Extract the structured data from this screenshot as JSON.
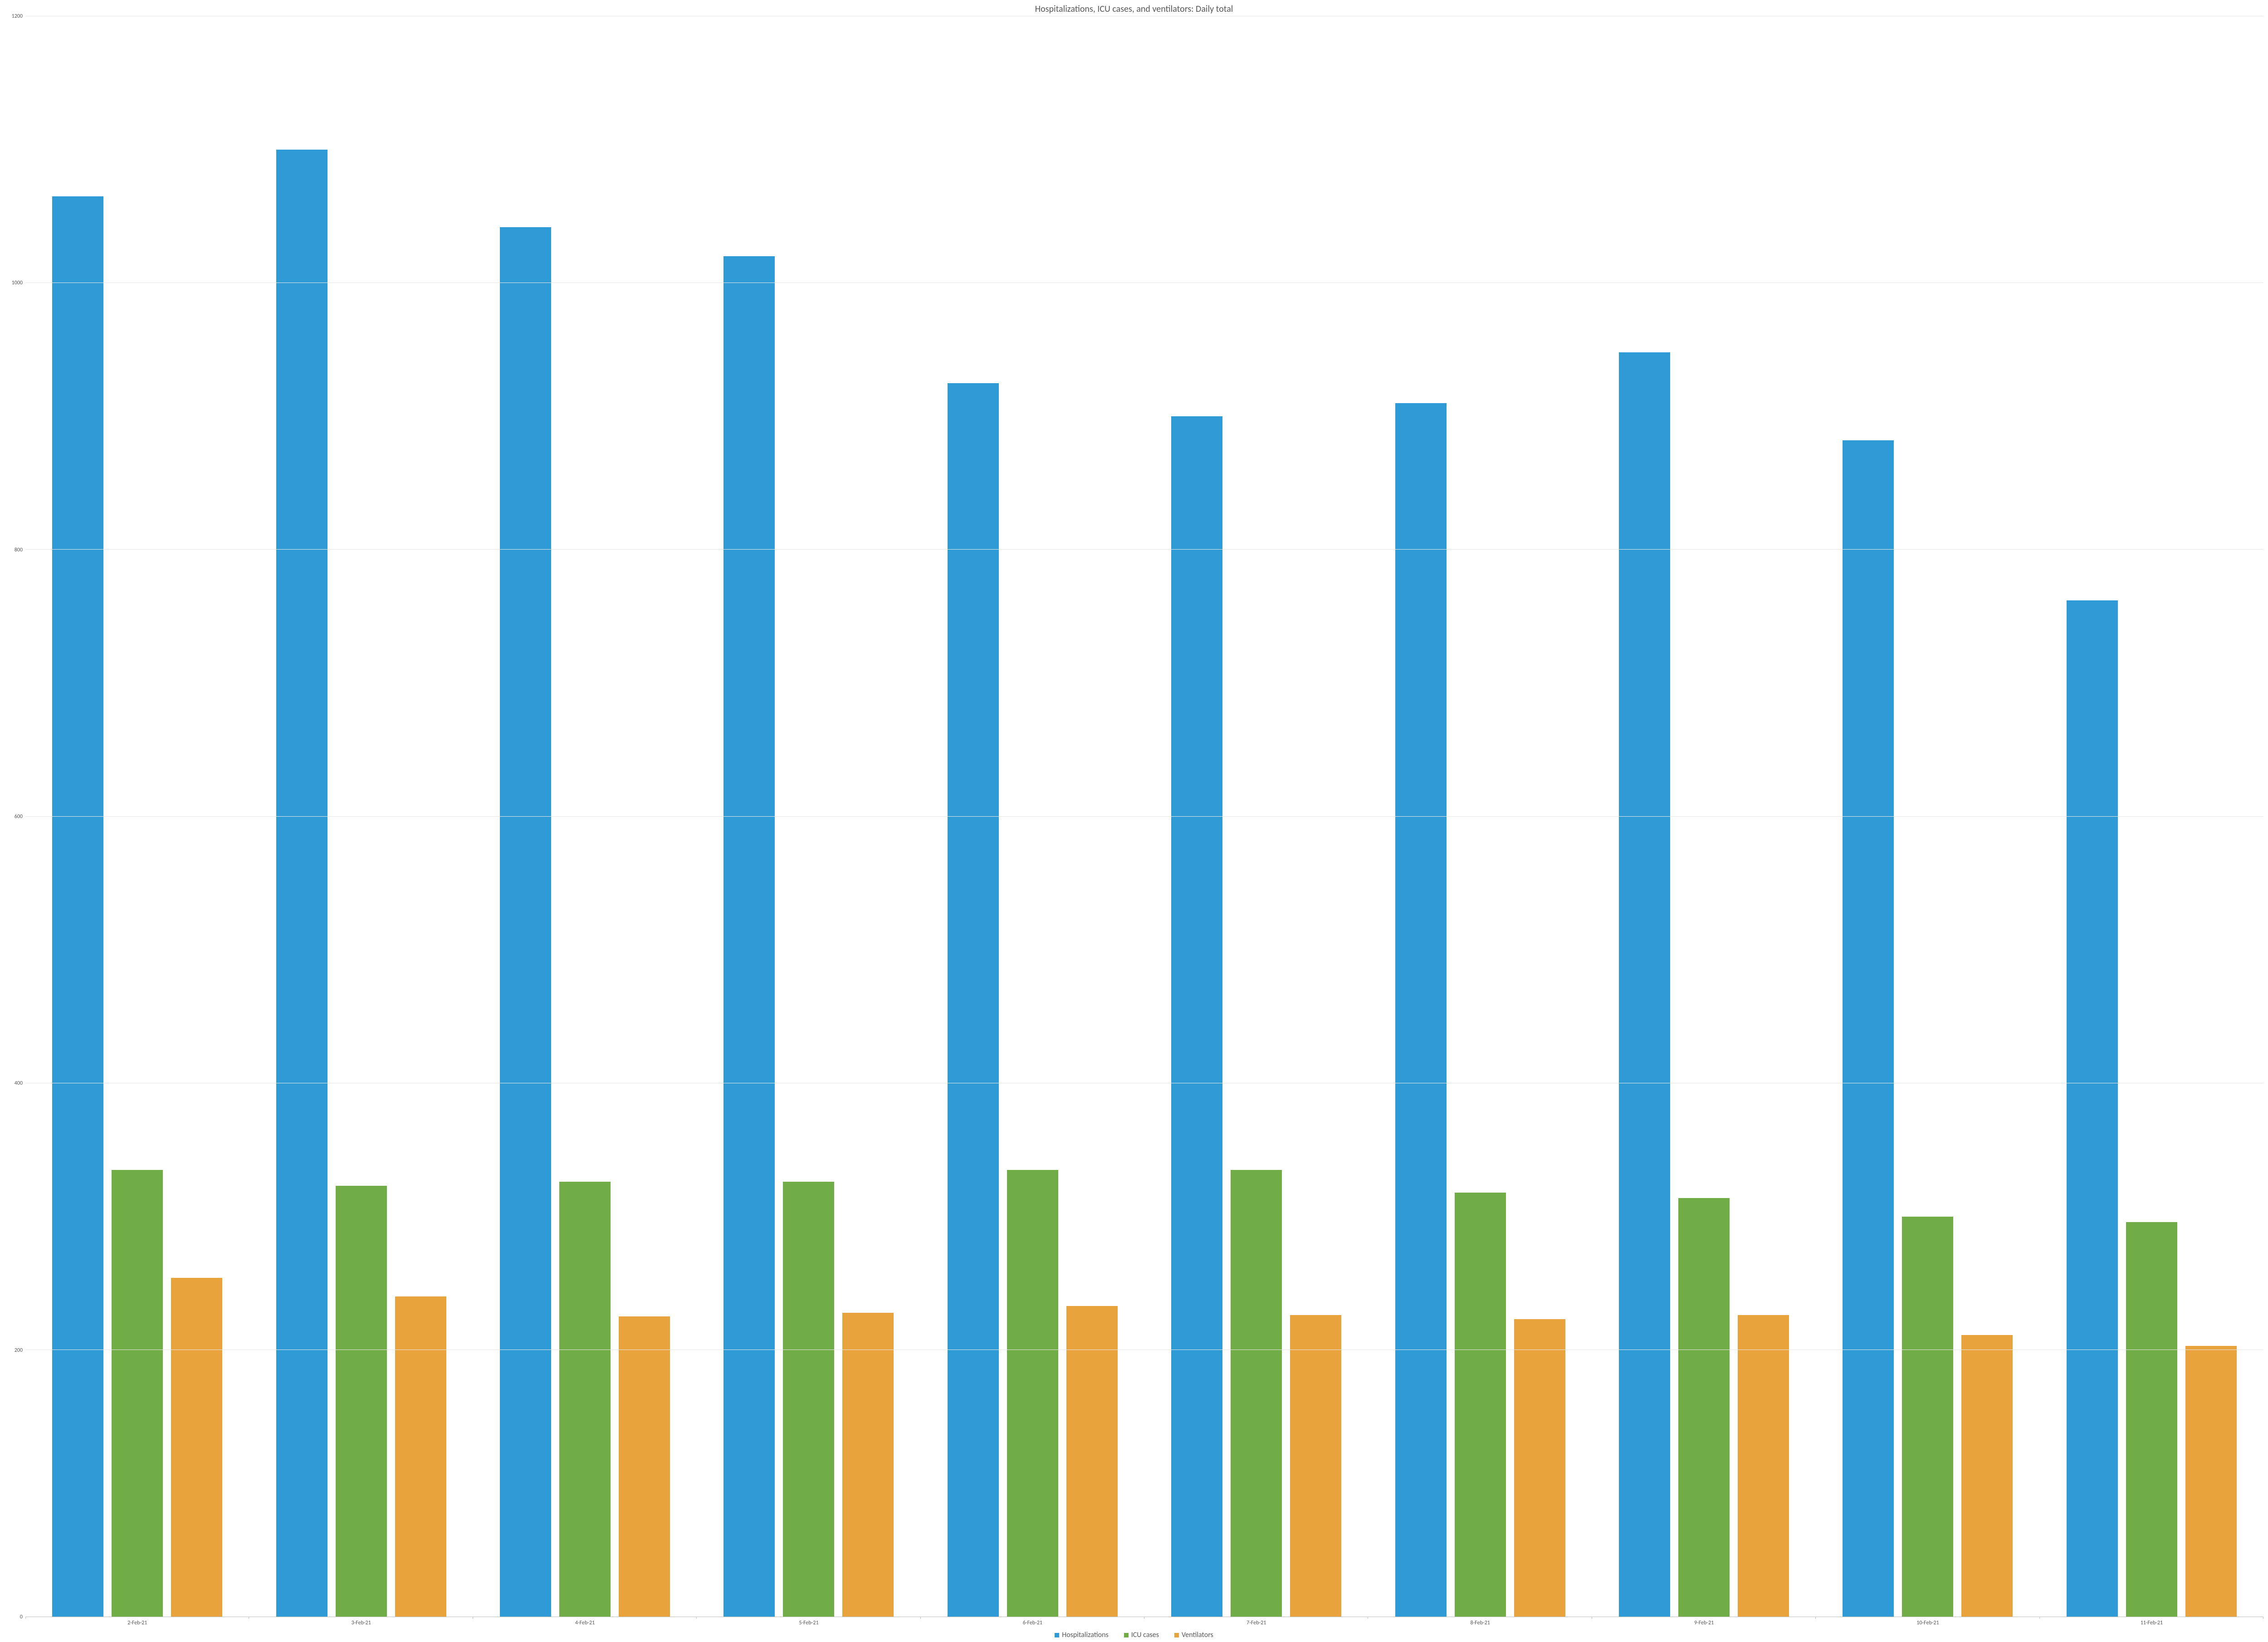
{
  "chart": {
    "type": "bar",
    "title": "Hospitalizations, ICU cases, and ventilators: Daily total",
    "title_fontsize": 20,
    "title_color": "#595959",
    "background_color": "#ffffff",
    "axis_label_fontsize": 12,
    "axis_label_color": "#595959",
    "axis_line_color": "#bfbfbf",
    "grid_color": "#e6e6e6",
    "legend_fontsize": 16,
    "legend_position": "bottom-center",
    "ylim": [
      0,
      1200
    ],
    "ytick_step": 200,
    "yticks": [
      0,
      200,
      400,
      600,
      800,
      1000,
      1200
    ],
    "categories": [
      "2-Feb-21",
      "3-Feb-21",
      "4-Feb-21",
      "5-Feb-21",
      "6-Feb-21",
      "7-Feb-21",
      "8-Feb-21",
      "9-Feb-21",
      "10-Feb-21",
      "11-Feb-21"
    ],
    "series": [
      {
        "name": "Hospitalizations",
        "color": "#2e9bd6",
        "values": [
          1065,
          1100,
          1042,
          1020,
          925,
          900,
          910,
          948,
          882,
          762
        ]
      },
      {
        "name": "ICU cases",
        "color": "#71ad47",
        "values": [
          335,
          323,
          326,
          326,
          335,
          335,
          318,
          314,
          300,
          296
        ]
      },
      {
        "name": "Ventilators",
        "color": "#e8a33d",
        "values": [
          254,
          240,
          225,
          228,
          233,
          226,
          223,
          226,
          211,
          203
        ]
      }
    ],
    "bar_group_inner_gap_pct": 4.8,
    "bar_group_side_padding_pct": 12
  }
}
